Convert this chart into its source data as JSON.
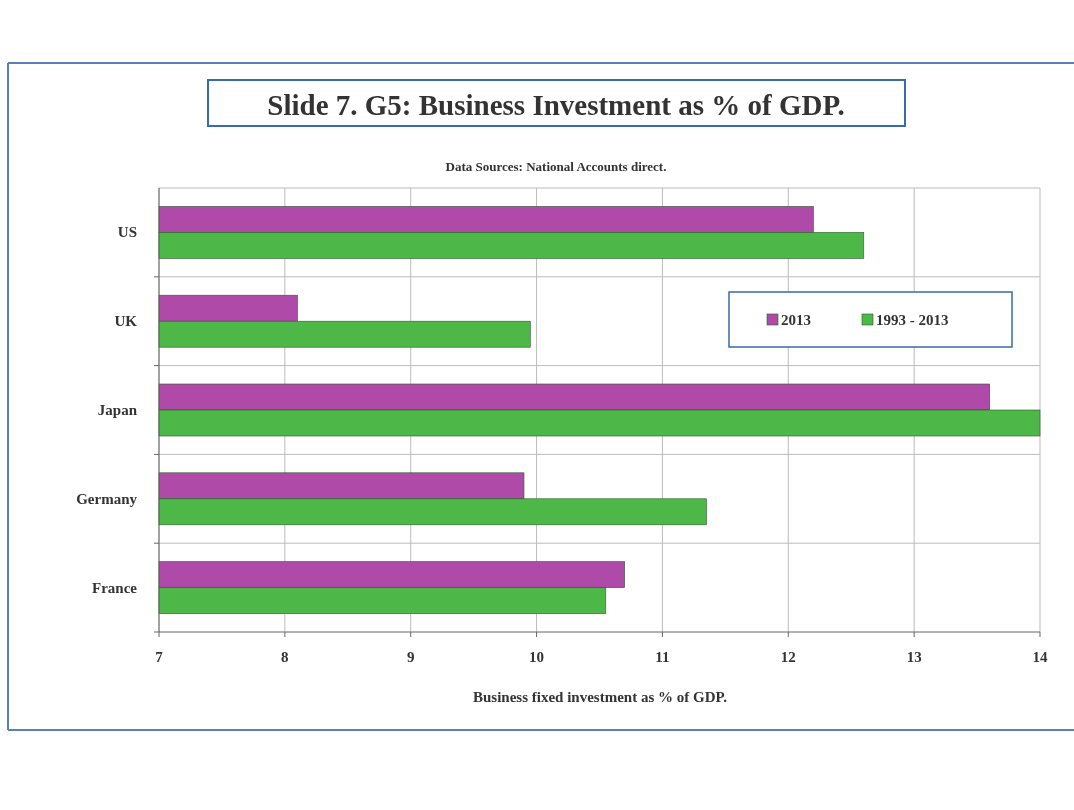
{
  "chart_data": {
    "type": "bar",
    "orientation": "horizontal",
    "title": "Slide 7. G5: Business Investment as % of GDP.",
    "subtitle": "Data Sources: National Accounts direct.",
    "xlabel": "Business fixed investment as % of GDP.",
    "categories": [
      "US",
      "UK",
      "Japan",
      "Germany",
      "France"
    ],
    "series": [
      {
        "name": "2013",
        "color": "#b04aa8",
        "values": [
          12.2,
          8.1,
          13.6,
          9.9,
          10.7
        ]
      },
      {
        "name": "1993 - 2013",
        "color": "#4db848",
        "values": [
          12.6,
          9.95,
          14,
          11.35,
          10.55
        ]
      }
    ],
    "xlim": [
      7,
      14
    ],
    "xticks": [
      7,
      8,
      9,
      10,
      11,
      12,
      13,
      14
    ],
    "grid": true,
    "legend": "top right"
  }
}
